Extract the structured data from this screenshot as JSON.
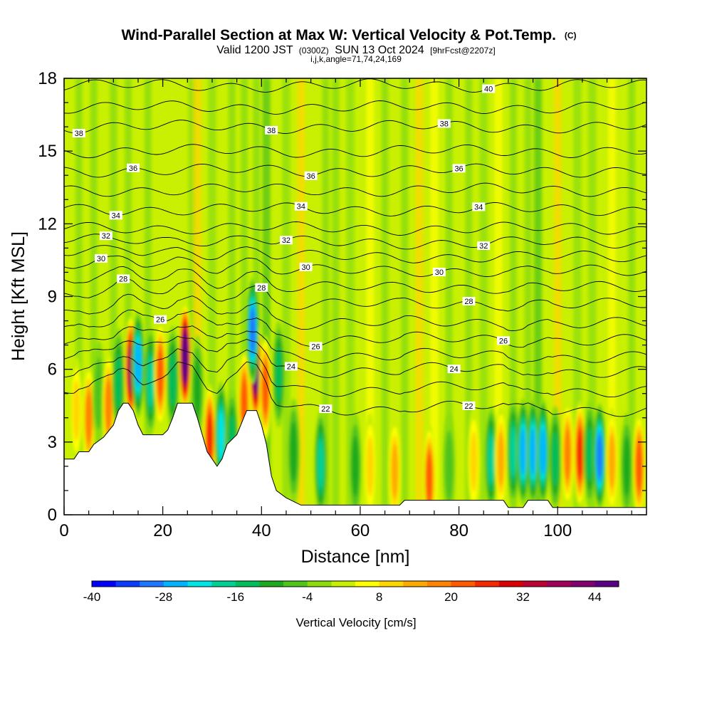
{
  "header": {
    "title_main": "Wind-Parallel Section at Max W: Vertical Velocity & Pot.Temp.",
    "title_tag": "(C)",
    "valid_prefix": "Valid 1200 JST",
    "valid_utc": "(0300Z)",
    "valid_date": "SUN 13 Oct 2024",
    "valid_fcst": "[9hrFcst@2207z]",
    "params": "i,j,k,angle=71,74,24,169"
  },
  "chart_data": {
    "type": "heatmap",
    "title": "Wind-Parallel Section at Max W: Vertical Velocity & Pot.Temp.",
    "xlabel": "Distance [nm]",
    "ylabel": "Height [Kft MSL]",
    "xlim": [
      0,
      118
    ],
    "ylim": [
      0,
      18
    ],
    "x_ticks": [
      0,
      20,
      40,
      60,
      80,
      100
    ],
    "x_tick_labels": [
      "0",
      "20",
      "40",
      "60",
      "80",
      "100"
    ],
    "y_ticks": [
      0,
      3,
      6,
      9,
      12,
      15,
      18
    ],
    "y_tick_labels": [
      "0",
      "3",
      "6",
      "9",
      "12",
      "15",
      "18"
    ],
    "colorbar": {
      "label": "Vertical Velocity [cm/s]",
      "min": -40,
      "max": 48,
      "step": 4,
      "tick_values": [
        -40,
        -28,
        -16,
        -4,
        8,
        20,
        32,
        44
      ],
      "tick_labels": [
        "-40",
        "-28",
        "-16",
        "-4",
        "8",
        "20",
        "32",
        "44"
      ],
      "colors": [
        "#0000ff",
        "#0a3cff",
        "#1e78ff",
        "#00b4ff",
        "#00e6e6",
        "#00d296",
        "#00be5a",
        "#1eaa1e",
        "#50c31e",
        "#8cdc0a",
        "#c8f000",
        "#ffff00",
        "#ffd700",
        "#ffaa00",
        "#ff8200",
        "#ff5a00",
        "#f52800",
        "#dc0000",
        "#be0032",
        "#a0005a",
        "#82006e",
        "#5a0082"
      ]
    },
    "terrain_kft": [
      [
        0,
        2.3
      ],
      [
        2,
        2.3
      ],
      [
        3,
        2.6
      ],
      [
        5,
        2.6
      ],
      [
        6,
        2.9
      ],
      [
        8,
        3.2
      ],
      [
        10,
        3.7
      ],
      [
        11,
        4.3
      ],
      [
        12,
        4.6
      ],
      [
        13,
        4.6
      ],
      [
        14,
        4.3
      ],
      [
        15,
        3.7
      ],
      [
        16,
        3.3
      ],
      [
        20,
        3.3
      ],
      [
        21,
        3.5
      ],
      [
        22,
        4.0
      ],
      [
        23,
        4.6
      ],
      [
        26,
        4.6
      ],
      [
        27,
        4.0
      ],
      [
        28,
        3.3
      ],
      [
        29,
        2.6
      ],
      [
        30,
        2.3
      ],
      [
        31,
        2.0
      ],
      [
        32,
        2.3
      ],
      [
        33,
        2.9
      ],
      [
        35,
        3.3
      ],
      [
        37,
        4.3
      ],
      [
        39,
        4.3
      ],
      [
        40,
        3.7
      ],
      [
        41,
        2.9
      ],
      [
        42,
        1.6
      ],
      [
        43,
        1.0
      ],
      [
        45,
        0.7
      ],
      [
        48,
        0.4
      ],
      [
        68,
        0.4
      ],
      [
        69,
        0.6
      ],
      [
        89,
        0.6
      ],
      [
        90,
        0.3
      ],
      [
        93,
        0.3
      ],
      [
        94,
        0.6
      ],
      [
        98,
        0.6
      ],
      [
        99,
        0.3
      ],
      [
        118,
        0.3
      ]
    ],
    "cells": [
      {
        "x": 2.5,
        "z": 4.3,
        "w": 6
      },
      {
        "x": 5.0,
        "z": 4.0,
        "w": 16
      },
      {
        "x": 7.0,
        "z": 5.0,
        "w": -3
      },
      {
        "x": 9.0,
        "z": 4.5,
        "w": 14
      },
      {
        "x": 11.0,
        "z": 5.5,
        "w": -10
      },
      {
        "x": 13.5,
        "z": 6.0,
        "w": 34
      },
      {
        "x": 15.0,
        "z": 6.2,
        "w": -22
      },
      {
        "x": 17.5,
        "z": 5.5,
        "w": -14
      },
      {
        "x": 19.5,
        "z": 5.8,
        "w": 18
      },
      {
        "x": 22.0,
        "z": 5.6,
        "w": -12
      },
      {
        "x": 24.5,
        "z": 6.5,
        "w": 46
      },
      {
        "x": 27.0,
        "z": 5.2,
        "w": -8
      },
      {
        "x": 29.5,
        "z": 3.2,
        "w": 24
      },
      {
        "x": 31.8,
        "z": 3.3,
        "w": -18
      },
      {
        "x": 34.0,
        "z": 3.0,
        "w": -10
      },
      {
        "x": 36.5,
        "z": 4.6,
        "w": 20
      },
      {
        "x": 38.8,
        "z": 6.0,
        "w": 44
      },
      {
        "x": 38.2,
        "z": 7.6,
        "w": -28
      },
      {
        "x": 40.8,
        "z": 5.2,
        "w": 18
      },
      {
        "x": 43.5,
        "z": 5.8,
        "w": -12
      },
      {
        "x": 46.5,
        "z": 2.6,
        "w": -8
      },
      {
        "x": 52.0,
        "z": 2.1,
        "w": -17
      },
      {
        "x": 59.0,
        "z": 2.0,
        "w": -8
      },
      {
        "x": 62.0,
        "z": 2.0,
        "w": 6
      },
      {
        "x": 67.0,
        "z": 1.8,
        "w": 10
      },
      {
        "x": 74.0,
        "z": 1.5,
        "w": 18
      },
      {
        "x": 78.0,
        "z": 2.0,
        "w": -5
      },
      {
        "x": 83.0,
        "z": 2.2,
        "w": 6
      },
      {
        "x": 86.5,
        "z": 2.3,
        "w": -14
      },
      {
        "x": 88.5,
        "z": 2.3,
        "w": 12
      },
      {
        "x": 91.0,
        "z": 2.6,
        "w": -14
      },
      {
        "x": 93.0,
        "z": 2.6,
        "w": -24
      },
      {
        "x": 95.0,
        "z": 2.6,
        "w": -22
      },
      {
        "x": 97.0,
        "z": 2.6,
        "w": -22
      },
      {
        "x": 99.5,
        "z": 2.3,
        "w": -10
      },
      {
        "x": 102.0,
        "z": 2.5,
        "w": 14
      },
      {
        "x": 104.5,
        "z": 2.5,
        "w": 22
      },
      {
        "x": 106.5,
        "z": 2.5,
        "w": -12
      },
      {
        "x": 108.5,
        "z": 2.4,
        "w": -28
      },
      {
        "x": 111.0,
        "z": 2.2,
        "w": 10
      },
      {
        "x": 114.0,
        "z": 2.0,
        "w": -6
      },
      {
        "x": 116.5,
        "z": 2.0,
        "w": 18
      }
    ],
    "columns": [
      {
        "x": 3.0,
        "w": 0
      },
      {
        "x": 6.0,
        "w": 0
      },
      {
        "x": 10.0,
        "w": 0
      },
      {
        "x": 13.0,
        "w": 0
      },
      {
        "x": 17.0,
        "w": 0
      },
      {
        "x": 26.0,
        "w": -4
      },
      {
        "x": 27.0,
        "w": 8
      },
      {
        "x": 30.0,
        "w": -4
      },
      {
        "x": 34.0,
        "w": 0
      },
      {
        "x": 36.5,
        "w": 0
      },
      {
        "x": 39.0,
        "w": 0
      },
      {
        "x": 41.0,
        "w": -6
      },
      {
        "x": 45.0,
        "w": -4
      },
      {
        "x": 48.0,
        "w": 10
      },
      {
        "x": 53.0,
        "w": 0
      },
      {
        "x": 55.0,
        "w": 0
      },
      {
        "x": 58.0,
        "w": -4
      },
      {
        "x": 62.0,
        "w": 4
      },
      {
        "x": 65.0,
        "w": 0
      },
      {
        "x": 69.0,
        "w": 0
      },
      {
        "x": 72.0,
        "w": 8
      },
      {
        "x": 75.0,
        "w": 4
      },
      {
        "x": 78.0,
        "w": 0
      },
      {
        "x": 82.0,
        "w": 0
      },
      {
        "x": 85.0,
        "w": -4
      },
      {
        "x": 88.0,
        "w": 4
      },
      {
        "x": 91.0,
        "w": 0
      },
      {
        "x": 94.0,
        "w": 0
      },
      {
        "x": 96.0,
        "w": -6
      },
      {
        "x": 100.0,
        "w": 8
      },
      {
        "x": 104.0,
        "w": -4
      },
      {
        "x": 107.0,
        "w": -4
      },
      {
        "x": 111.0,
        "w": 4
      },
      {
        "x": 115.0,
        "w": 0
      }
    ],
    "theta_contours": [
      {
        "value": 22,
        "labels": [
          {
            "x": 53,
            "text": "22"
          },
          {
            "x": 82,
            "text": "22"
          }
        ]
      },
      {
        "value": 23,
        "labels": []
      },
      {
        "value": 24,
        "labels": [
          {
            "x": 46,
            "text": "24"
          },
          {
            "x": 79,
            "text": "24"
          }
        ]
      },
      {
        "value": 25,
        "labels": []
      },
      {
        "value": 26,
        "labels": [
          {
            "x": 19.5,
            "text": "26"
          },
          {
            "x": 51,
            "text": "26"
          },
          {
            "x": 89,
            "text": "26"
          }
        ]
      },
      {
        "value": 27,
        "labels": []
      },
      {
        "value": 28,
        "labels": [
          {
            "x": 12,
            "text": "28"
          },
          {
            "x": 40,
            "text": "28"
          },
          {
            "x": 82,
            "text": "28"
          }
        ]
      },
      {
        "value": 29,
        "labels": []
      },
      {
        "value": 30,
        "labels": [
          {
            "x": 7.5,
            "text": "30"
          },
          {
            "x": 49,
            "text": "30"
          },
          {
            "x": 76,
            "text": "30"
          }
        ]
      },
      {
        "value": 31,
        "labels": []
      },
      {
        "value": 32,
        "labels": [
          {
            "x": 8.5,
            "text": "32"
          },
          {
            "x": 45,
            "text": "32"
          },
          {
            "x": 85,
            "text": "32"
          }
        ]
      },
      {
        "value": 33,
        "labels": []
      },
      {
        "value": 34,
        "labels": [
          {
            "x": 10.5,
            "text": "34"
          },
          {
            "x": 48,
            "text": "34"
          },
          {
            "x": 84,
            "text": "34"
          }
        ]
      },
      {
        "value": 35,
        "labels": []
      },
      {
        "value": 36,
        "labels": [
          {
            "x": 14,
            "text": "36"
          },
          {
            "x": 50,
            "text": "36"
          },
          {
            "x": 80,
            "text": "36"
          }
        ]
      },
      {
        "value": 37,
        "labels": []
      },
      {
        "value": 38,
        "labels": [
          {
            "x": 3,
            "text": "38"
          },
          {
            "x": 42,
            "text": "38"
          },
          {
            "x": 77,
            "text": "38"
          }
        ]
      },
      {
        "value": 39,
        "labels": []
      },
      {
        "value": 40,
        "labels": [
          {
            "x": 86,
            "text": "40"
          }
        ]
      }
    ],
    "theta_levels_kft": [
      [
        22,
        4.2
      ],
      [
        23,
        5.0
      ],
      [
        24,
        5.8
      ],
      [
        25,
        6.4
      ],
      [
        26,
        7.1
      ],
      [
        27,
        7.8
      ],
      [
        28,
        8.6
      ],
      [
        29,
        9.3
      ],
      [
        30,
        10.0
      ],
      [
        31,
        10.6
      ],
      [
        32,
        11.2
      ],
      [
        33,
        11.8
      ],
      [
        34,
        12.6
      ],
      [
        35,
        13.4
      ],
      [
        36,
        14.2
      ],
      [
        37,
        15.0
      ],
      [
        38,
        16.0
      ],
      [
        39,
        16.8
      ],
      [
        40,
        17.7
      ]
    ]
  }
}
